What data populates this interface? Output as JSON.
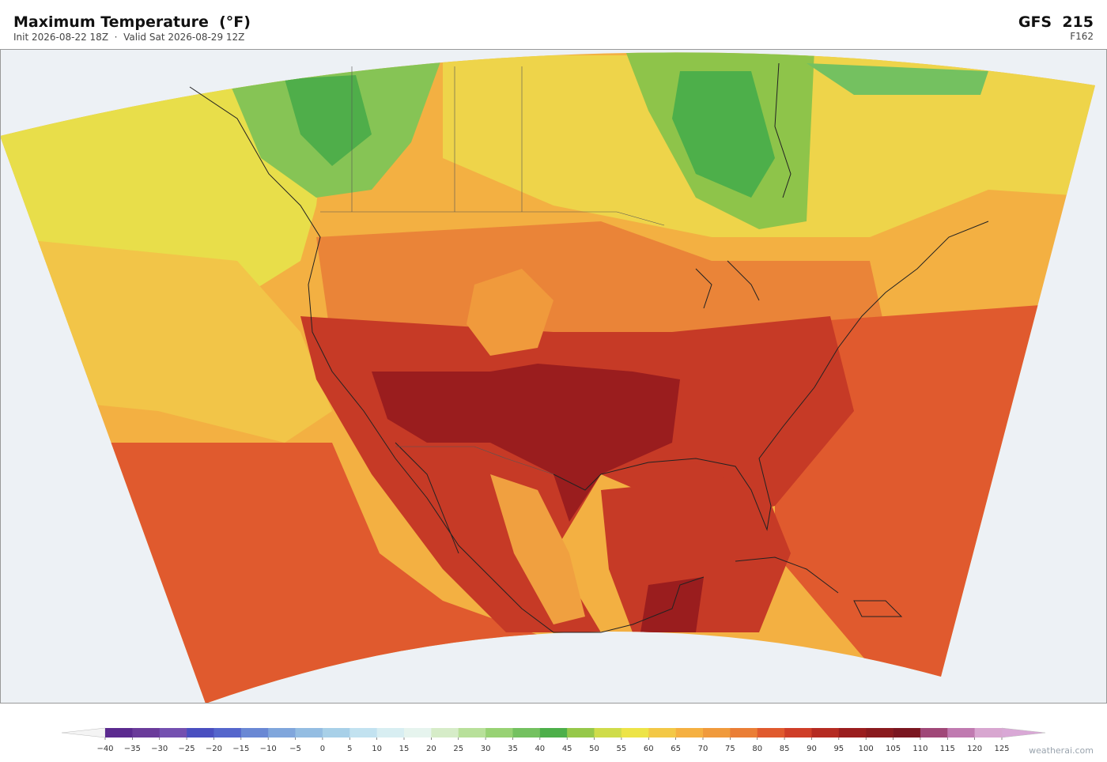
{
  "header": {
    "title": "Maximum Temperature  (°F)",
    "subtitle": "Init 2026-08-22 18Z  ·  Valid Sat 2026-08-29 12Z",
    "model": "GFS  215",
    "forecast_hour": "F162"
  },
  "colorbar": {
    "ticks": [
      {
        "value": -40,
        "label": "−40"
      },
      {
        "value": -35,
        "label": "−35"
      },
      {
        "value": -30,
        "label": "−30"
      },
      {
        "value": -25,
        "label": "−25"
      },
      {
        "value": -20,
        "label": "−20"
      },
      {
        "value": -15,
        "label": "−15"
      },
      {
        "value": -10,
        "label": "−10"
      },
      {
        "value": -5,
        "label": "−5"
      },
      0,
      5,
      10,
      15,
      20,
      25,
      30,
      35,
      40,
      45,
      50,
      55,
      60,
      65,
      70,
      75,
      80,
      85,
      90,
      95,
      100,
      105,
      110,
      115,
      120,
      125
    ],
    "colors": [
      "#5b2a8f",
      "#6a3b9a",
      "#7450b0",
      "#4a4fc0",
      "#5566cc",
      "#6a88d4",
      "#80a6dc",
      "#94bde2",
      "#a8d0e8",
      "#c2e2f0",
      "#d8eef2",
      "#e6f4ee",
      "#d6ecc8",
      "#b8e09a",
      "#98d274",
      "#74c160",
      "#4daf4a",
      "#96c84a",
      "#cfdc4a",
      "#ede447",
      "#f3c846",
      "#f5b041",
      "#f09a3c",
      "#ea7e36",
      "#e05a2e",
      "#cf3e28",
      "#b52b22",
      "#9a1d1e",
      "#8a1a1e",
      "#7a1620",
      "#a04878",
      "#c07ab0",
      "#d8a6d0"
    ],
    "under_color": "#f4f4f4",
    "over_color": "#d9a8d6"
  },
  "watermark": "weatherai.com"
}
